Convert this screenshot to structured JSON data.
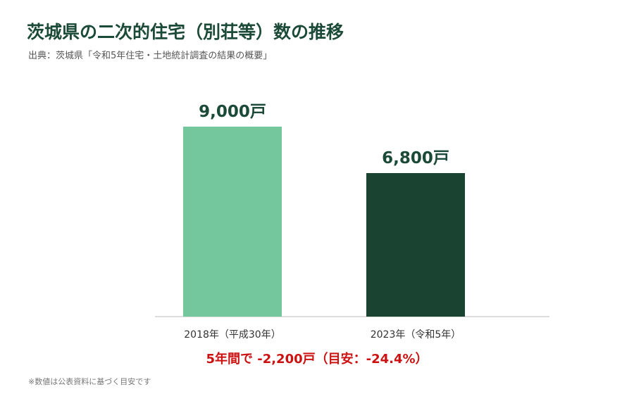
{
  "chart_data": {
    "type": "bar",
    "title": "茨城県の二次的住宅（別荘等）数の推移",
    "subtitle": "出典：茨城県「令和5年住宅・土地統計調査の結果の概要」",
    "categories": [
      "2018年（平成30年）",
      "2023年（令和5年）"
    ],
    "values": [
      9000,
      6800
    ],
    "value_labels": [
      "9,000戸",
      "6,800戸"
    ],
    "ylim": [
      0,
      10000
    ],
    "grid": false,
    "colors": [
      "#74c69d",
      "#1b4332"
    ],
    "annotation": "5年間で -2,200戸（目安：-24.4%）",
    "footnote": "※数値は公表資料に基づく目安です"
  }
}
